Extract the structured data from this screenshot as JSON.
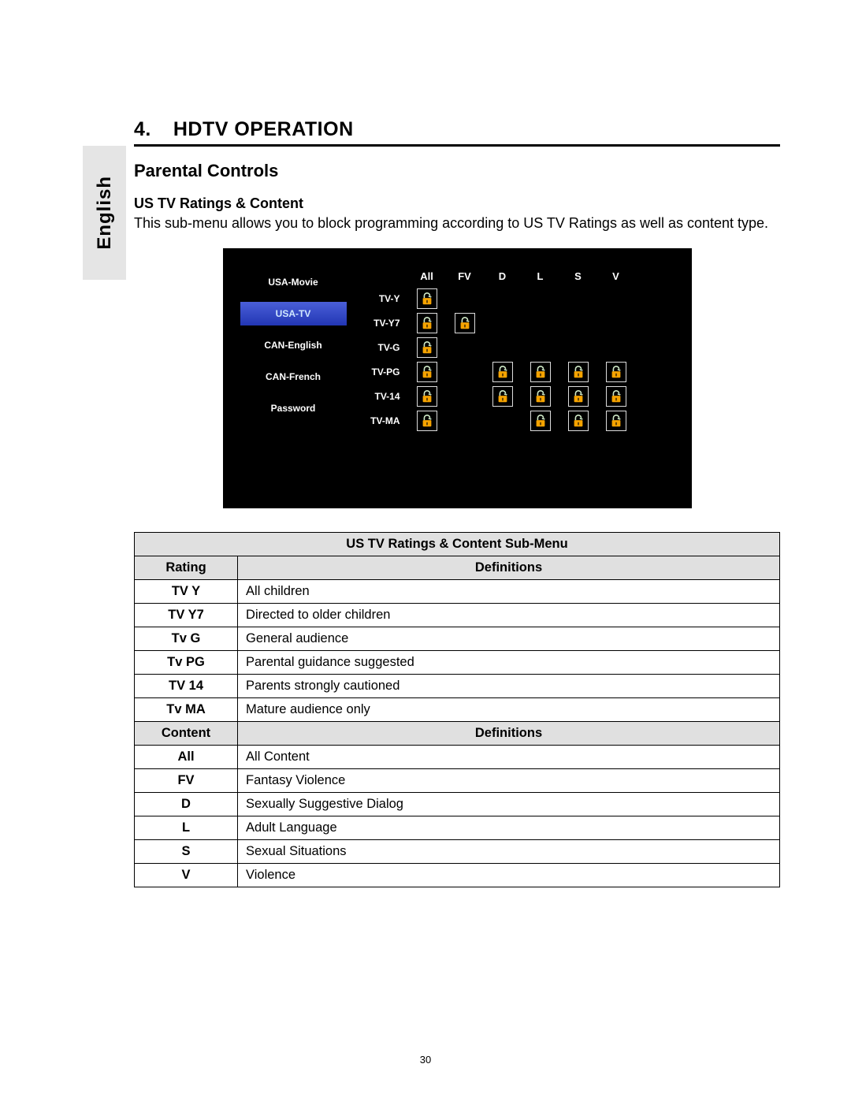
{
  "language_tab": "English",
  "chapter": {
    "number": "4.",
    "title": "HDTV OPERATION"
  },
  "section_title": "Parental Controls",
  "sub_title": "US TV Ratings & Content",
  "body_text": "This sub-menu allows you to block programming according to US TV Ratings as well as content type.",
  "page_number": "30",
  "tv_menu": {
    "left_items": [
      {
        "label": "USA-Movie",
        "selected": false
      },
      {
        "label": "USA-TV",
        "selected": true
      },
      {
        "label": "CAN-English",
        "selected": false
      },
      {
        "label": "CAN-French",
        "selected": false
      },
      {
        "label": "Password",
        "selected": false
      }
    ],
    "content_columns": [
      "All",
      "FV",
      "D",
      "L",
      "S",
      "V"
    ],
    "rating_rows": [
      {
        "label": "TV-Y",
        "cells": [
          true,
          false,
          false,
          false,
          false,
          false
        ]
      },
      {
        "label": "TV-Y7",
        "cells": [
          true,
          true,
          false,
          false,
          false,
          false
        ]
      },
      {
        "label": "TV-G",
        "cells": [
          true,
          false,
          false,
          false,
          false,
          false
        ]
      },
      {
        "label": "TV-PG",
        "cells": [
          true,
          false,
          true,
          true,
          true,
          true
        ]
      },
      {
        "label": "TV-14",
        "cells": [
          true,
          false,
          true,
          true,
          true,
          true
        ]
      },
      {
        "label": "TV-MA",
        "cells": [
          true,
          false,
          false,
          true,
          true,
          true
        ]
      }
    ],
    "lock_colors": {
      "body": "#f5a300",
      "shackle": "#cfe9c7",
      "border": "#dcdcdc"
    }
  },
  "definition_table": {
    "title": "US TV Ratings & Content Sub-Menu",
    "header1": {
      "col1": "Rating",
      "col2": "Definitions"
    },
    "ratings": [
      {
        "k": "TV Y",
        "v": "All children"
      },
      {
        "k": "TV Y7",
        "v": "Directed to older children"
      },
      {
        "k": "Tv G",
        "v": "General audience"
      },
      {
        "k": "Tv PG",
        "v": "Parental guidance suggested"
      },
      {
        "k": "TV 14",
        "v": "Parents strongly cautioned"
      },
      {
        "k": "Tv MA",
        "v": "Mature audience only"
      }
    ],
    "header2": {
      "col1": "Content",
      "col2": "Definitions"
    },
    "contents": [
      {
        "k": "All",
        "v": "All Content"
      },
      {
        "k": "FV",
        "v": "Fantasy Violence"
      },
      {
        "k": "D",
        "v": "Sexually Suggestive Dialog"
      },
      {
        "k": "L",
        "v": "Adult Language"
      },
      {
        "k": "S",
        "v": "Sexual Situations"
      },
      {
        "k": "V",
        "v": "Violence"
      }
    ]
  }
}
